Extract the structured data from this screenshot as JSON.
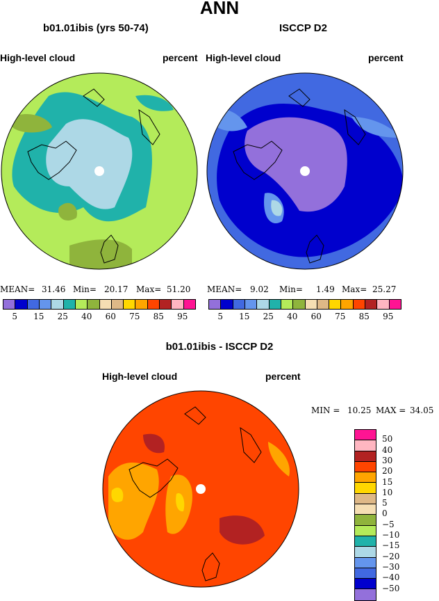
{
  "title": "ANN",
  "left_panel": {
    "subtitle": "b01.01ibis (yrs 50-74)",
    "variable": "High-level cloud",
    "units": "percent",
    "mean_label": "MEAN=",
    "mean": "31.46",
    "min_label": "Min=",
    "min": "20.17",
    "max_label": "Max=",
    "max": "51.20"
  },
  "right_panel": {
    "subtitle": "ISCCP D2",
    "variable": "High-level cloud",
    "units": "percent",
    "mean_label": "MEAN=",
    "mean": "9.02",
    "min_label": "Min=",
    "min": "1.49",
    "max_label": "Max=",
    "max": "25.27"
  },
  "colorbar_top": {
    "colors": [
      "#9370db",
      "#0000cd",
      "#4169e1",
      "#6495ed",
      "#add8e6",
      "#20b2aa",
      "#b4eb5a",
      "#8fb43c",
      "#f5deb3",
      "#deb887",
      "#ffd700",
      "#ffa500",
      "#ff4500",
      "#b22222",
      "#ffb6c1",
      "#ff1493"
    ],
    "tick_labels": [
      "5",
      "15",
      "25",
      "40",
      "60",
      "75",
      "85",
      "95"
    ]
  },
  "diff_panel": {
    "subtitle": "b01.01ibis - ISCCP D2",
    "variable": "High-level cloud",
    "units": "percent",
    "min_label": "MIN =",
    "min": "10.25",
    "max_label": "MAX =",
    "max": "34.05"
  },
  "colorbar_diff": {
    "colors": [
      "#ff1493",
      "#ffb6c1",
      "#b22222",
      "#ff4500",
      "#ffa500",
      "#ffd700",
      "#deb887",
      "#f5deb3",
      "#8fb43c",
      "#b4eb5a",
      "#20b2aa",
      "#add8e6",
      "#6495ed",
      "#4169e1",
      "#0000cd",
      "#9370db"
    ],
    "tick_labels": [
      "50",
      "40",
      "30",
      "20",
      "15",
      "10",
      "5",
      "0",
      "−5",
      "−10",
      "−15",
      "−20",
      "−30",
      "−40",
      "−50"
    ]
  }
}
